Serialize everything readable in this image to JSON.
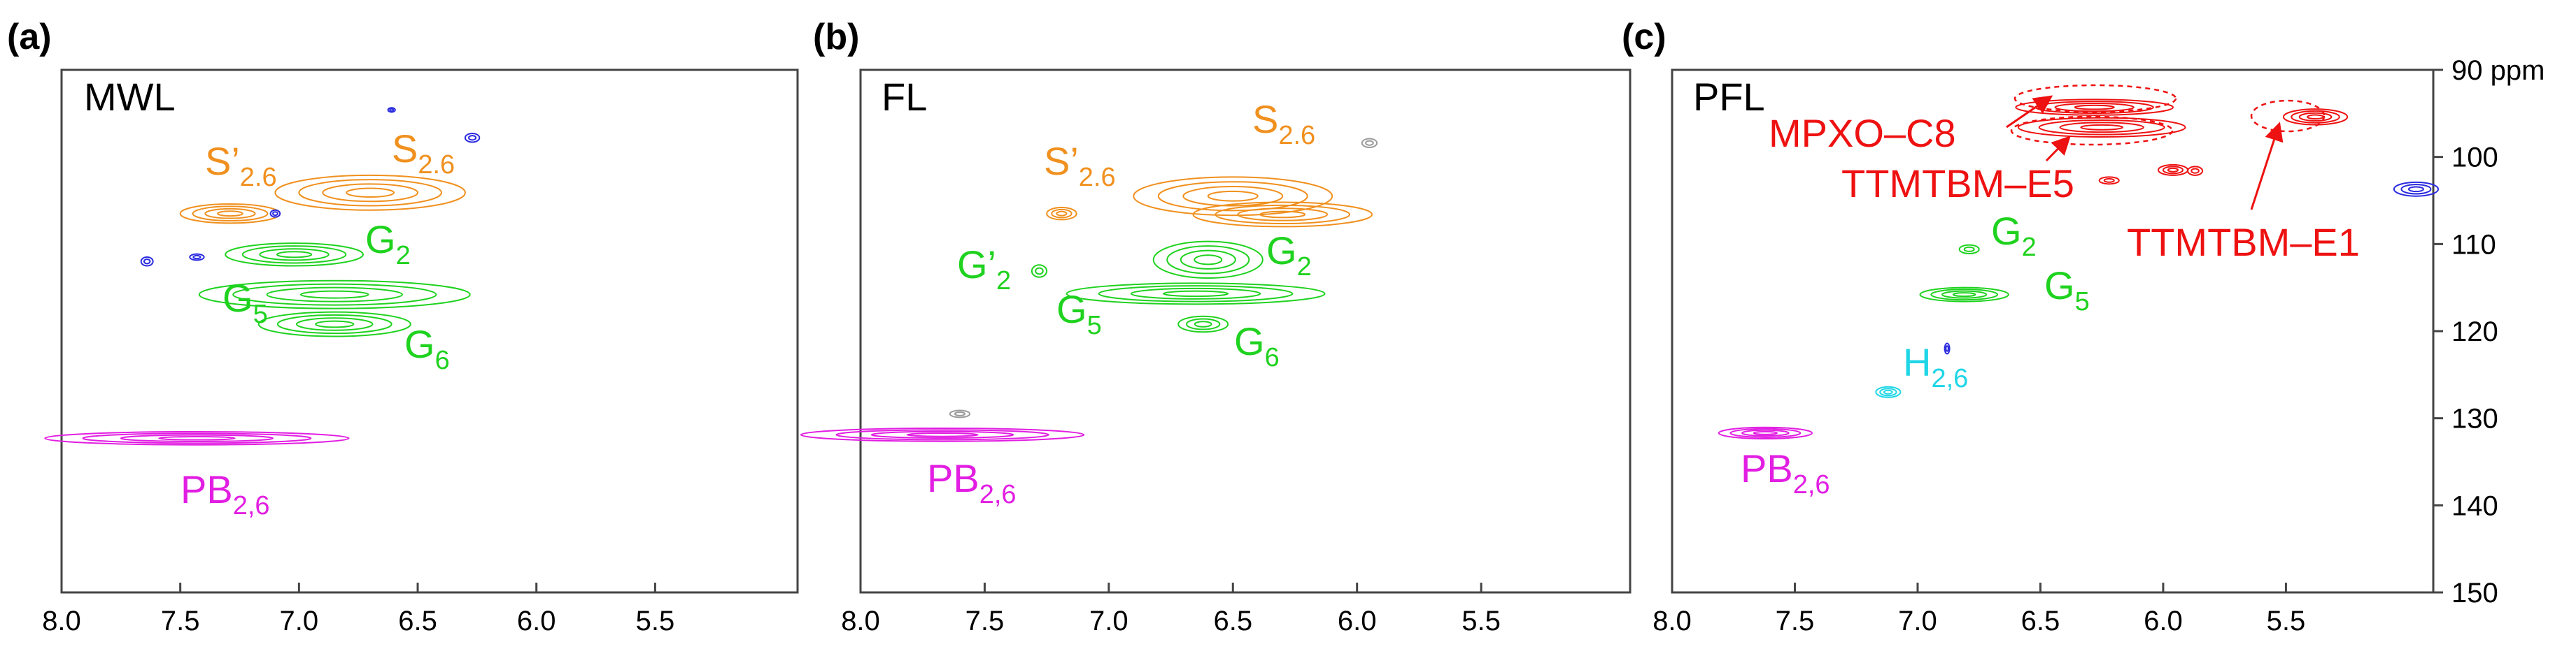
{
  "figure": {
    "x_ticks": [
      "8.0",
      "7.5",
      "7.0",
      "6.5",
      "6.0",
      "5.5"
    ],
    "y_ticks": [
      "90 ppm",
      "100",
      "110",
      "120",
      "130",
      "140",
      "150"
    ]
  },
  "panels": [
    {
      "letter": "(a)",
      "name": "MWL",
      "labels": [
        {
          "base": "S’",
          "sub": "2.6",
          "color": "#f0901e"
        },
        {
          "base": "S",
          "sub": "2.6",
          "color": "#f0901e"
        },
        {
          "base": "G",
          "sub": "2",
          "color": "#1fd21f"
        },
        {
          "base": "G",
          "sub": "5",
          "color": "#1fd21f"
        },
        {
          "base": "G",
          "sub": "6",
          "color": "#1fd21f"
        },
        {
          "base": "PB",
          "sub": "2,6",
          "color": "#e21ee2"
        }
      ]
    },
    {
      "letter": "(b)",
      "name": "FL",
      "labels": [
        {
          "base": "S’",
          "sub": "2.6",
          "color": "#f0901e"
        },
        {
          "base": "S",
          "sub": "2.6",
          "color": "#f0901e"
        },
        {
          "base": "G’",
          "sub": "2",
          "color": "#1fd21f"
        },
        {
          "base": "G",
          "sub": "2",
          "color": "#1fd21f"
        },
        {
          "base": "G",
          "sub": "5",
          "color": "#1fd21f"
        },
        {
          "base": "G",
          "sub": "6",
          "color": "#1fd21f"
        },
        {
          "base": "PB",
          "sub": "2,6",
          "color": "#e21ee2"
        }
      ]
    },
    {
      "letter": "(c)",
      "name": "PFL",
      "labels": [
        {
          "base": "MPXO–C8",
          "sub": "",
          "color": "#ee1111"
        },
        {
          "base": "TTMTBM–E5",
          "sub": "",
          "color": "#ee1111"
        },
        {
          "base": "TTMTBM–E1",
          "sub": "",
          "color": "#ee1111"
        },
        {
          "base": "G",
          "sub": "2",
          "color": "#1fd21f"
        },
        {
          "base": "G",
          "sub": "5",
          "color": "#1fd21f"
        },
        {
          "base": "H",
          "sub": "2,6",
          "color": "#1ed6e6"
        },
        {
          "base": "PB",
          "sub": "2,6",
          "color": "#e21ee2"
        }
      ]
    }
  ],
  "chart_data": {
    "type": "contour",
    "x_axis": {
      "unit": "ppm",
      "range": [
        8.0,
        4.9
      ],
      "reversed": true,
      "ticks": [
        8.0,
        7.5,
        7.0,
        6.5,
        6.0,
        5.5
      ]
    },
    "y_axis": {
      "unit": "ppm",
      "range": [
        90,
        150
      ],
      "reversed": true,
      "ticks": [
        90,
        100,
        110,
        120,
        130,
        140,
        150
      ]
    },
    "colors": {
      "S": "#f0901e",
      "G": "#1fd21f",
      "H": "#1ed6e6",
      "PB": "#e21ee2",
      "new": "#ee1111",
      "other": "#2a2ae0",
      "weak": "#9a9a9a"
    },
    "panels": [
      {
        "name": "MWL",
        "peaks": [
          {
            "id": "S'2.6",
            "x": 7.29,
            "y": 106.5,
            "rx": 0.21,
            "ry": 1.1,
            "color": "orange"
          },
          {
            "id": "S2.6",
            "x": 6.7,
            "y": 104.1,
            "rx": 0.4,
            "ry": 2.0,
            "color": "orange"
          },
          {
            "id": "G2",
            "x": 7.02,
            "y": 111.2,
            "rx": 0.29,
            "ry": 1.3,
            "color": "green"
          },
          {
            "id": "G5",
            "x": 6.85,
            "y": 115.8,
            "rx": 0.57,
            "ry": 1.6,
            "color": "green"
          },
          {
            "id": "G6",
            "x": 6.85,
            "y": 119.2,
            "rx": 0.32,
            "ry": 1.4,
            "color": "green"
          },
          {
            "id": "PB2,6",
            "x": 7.43,
            "y": 132.3,
            "rx": 0.64,
            "ry": 0.75,
            "color": "magenta"
          },
          {
            "id": "blue-1",
            "x": 7.64,
            "y": 112.0,
            "rx": 0.025,
            "ry": 0.5,
            "color": "blue"
          },
          {
            "id": "blue-2",
            "x": 7.43,
            "y": 111.5,
            "rx": 0.03,
            "ry": 0.35,
            "color": "blue"
          },
          {
            "id": "blue-3",
            "x": 7.1,
            "y": 106.5,
            "rx": 0.02,
            "ry": 0.4,
            "color": "blue"
          },
          {
            "id": "blue-4",
            "x": 6.27,
            "y": 97.8,
            "rx": 0.03,
            "ry": 0.5,
            "color": "blue"
          },
          {
            "id": "blue-5",
            "x": 6.61,
            "y": 94.6,
            "rx": 0.015,
            "ry": 0.25,
            "color": "blue"
          }
        ]
      },
      {
        "name": "FL",
        "peaks": [
          {
            "id": "S'2.6",
            "x": 7.19,
            "y": 106.5,
            "rx": 0.06,
            "ry": 0.7,
            "color": "orange"
          },
          {
            "id": "S2.6",
            "x": 6.5,
            "y": 104.5,
            "rx": 0.4,
            "ry": 2.2,
            "color": "orange"
          },
          {
            "id": "S2.6-b",
            "x": 6.3,
            "y": 106.6,
            "rx": 0.36,
            "ry": 1.4,
            "color": "orange"
          },
          {
            "id": "G'2",
            "x": 7.28,
            "y": 113.1,
            "rx": 0.03,
            "ry": 0.7,
            "color": "green"
          },
          {
            "id": "G2",
            "x": 6.6,
            "y": 111.8,
            "rx": 0.22,
            "ry": 2.1,
            "color": "green"
          },
          {
            "id": "G5",
            "x": 6.65,
            "y": 115.7,
            "rx": 0.52,
            "ry": 1.2,
            "color": "green"
          },
          {
            "id": "G6",
            "x": 6.62,
            "y": 119.2,
            "rx": 0.1,
            "ry": 0.9,
            "color": "green"
          },
          {
            "id": "PB2,6",
            "x": 7.67,
            "y": 131.9,
            "rx": 0.57,
            "ry": 0.75,
            "color": "magenta"
          },
          {
            "id": "grey-1",
            "x": 7.6,
            "y": 129.5,
            "rx": 0.04,
            "ry": 0.4,
            "color": "grey"
          },
          {
            "id": "grey-2",
            "x": 5.95,
            "y": 98.4,
            "rx": 0.03,
            "ry": 0.5,
            "color": "grey"
          }
        ]
      },
      {
        "name": "PFL",
        "peaks": [
          {
            "id": "MPXO-C8",
            "x": 6.28,
            "y": 94.3,
            "rx": 0.32,
            "ry": 0.9,
            "color": "red",
            "circled": true
          },
          {
            "id": "TTMTBM-E5",
            "x": 6.25,
            "y": 96.6,
            "rx": 0.34,
            "ry": 1.1,
            "color": "red",
            "circled": true
          },
          {
            "id": "TTMTBM-E1",
            "x": 5.38,
            "y": 95.4,
            "rx": 0.13,
            "ry": 0.9,
            "color": "red",
            "circled": true
          },
          {
            "id": "red-1",
            "x": 5.96,
            "y": 101.5,
            "rx": 0.06,
            "ry": 0.6,
            "color": "red"
          },
          {
            "id": "red-2",
            "x": 5.87,
            "y": 101.6,
            "rx": 0.03,
            "ry": 0.5,
            "color": "red"
          },
          {
            "id": "red-3",
            "x": 6.22,
            "y": 102.7,
            "rx": 0.04,
            "ry": 0.4,
            "color": "red"
          },
          {
            "id": "G2",
            "x": 6.79,
            "y": 110.6,
            "rx": 0.04,
            "ry": 0.5,
            "color": "green"
          },
          {
            "id": "G5",
            "x": 6.81,
            "y": 115.8,
            "rx": 0.18,
            "ry": 0.8,
            "color": "green"
          },
          {
            "id": "H2,6",
            "x": 7.12,
            "y": 127.0,
            "rx": 0.05,
            "ry": 0.6,
            "color": "cyan"
          },
          {
            "id": "PB2,6",
            "x": 7.62,
            "y": 131.7,
            "rx": 0.19,
            "ry": 0.65,
            "color": "magenta"
          },
          {
            "id": "blue-1",
            "x": 4.97,
            "y": 103.7,
            "rx": 0.09,
            "ry": 0.8,
            "color": "blue"
          },
          {
            "id": "blue-2",
            "x": 6.88,
            "y": 122.0,
            "rx": 0.01,
            "ry": 0.6,
            "color": "blue"
          }
        ]
      }
    ]
  }
}
